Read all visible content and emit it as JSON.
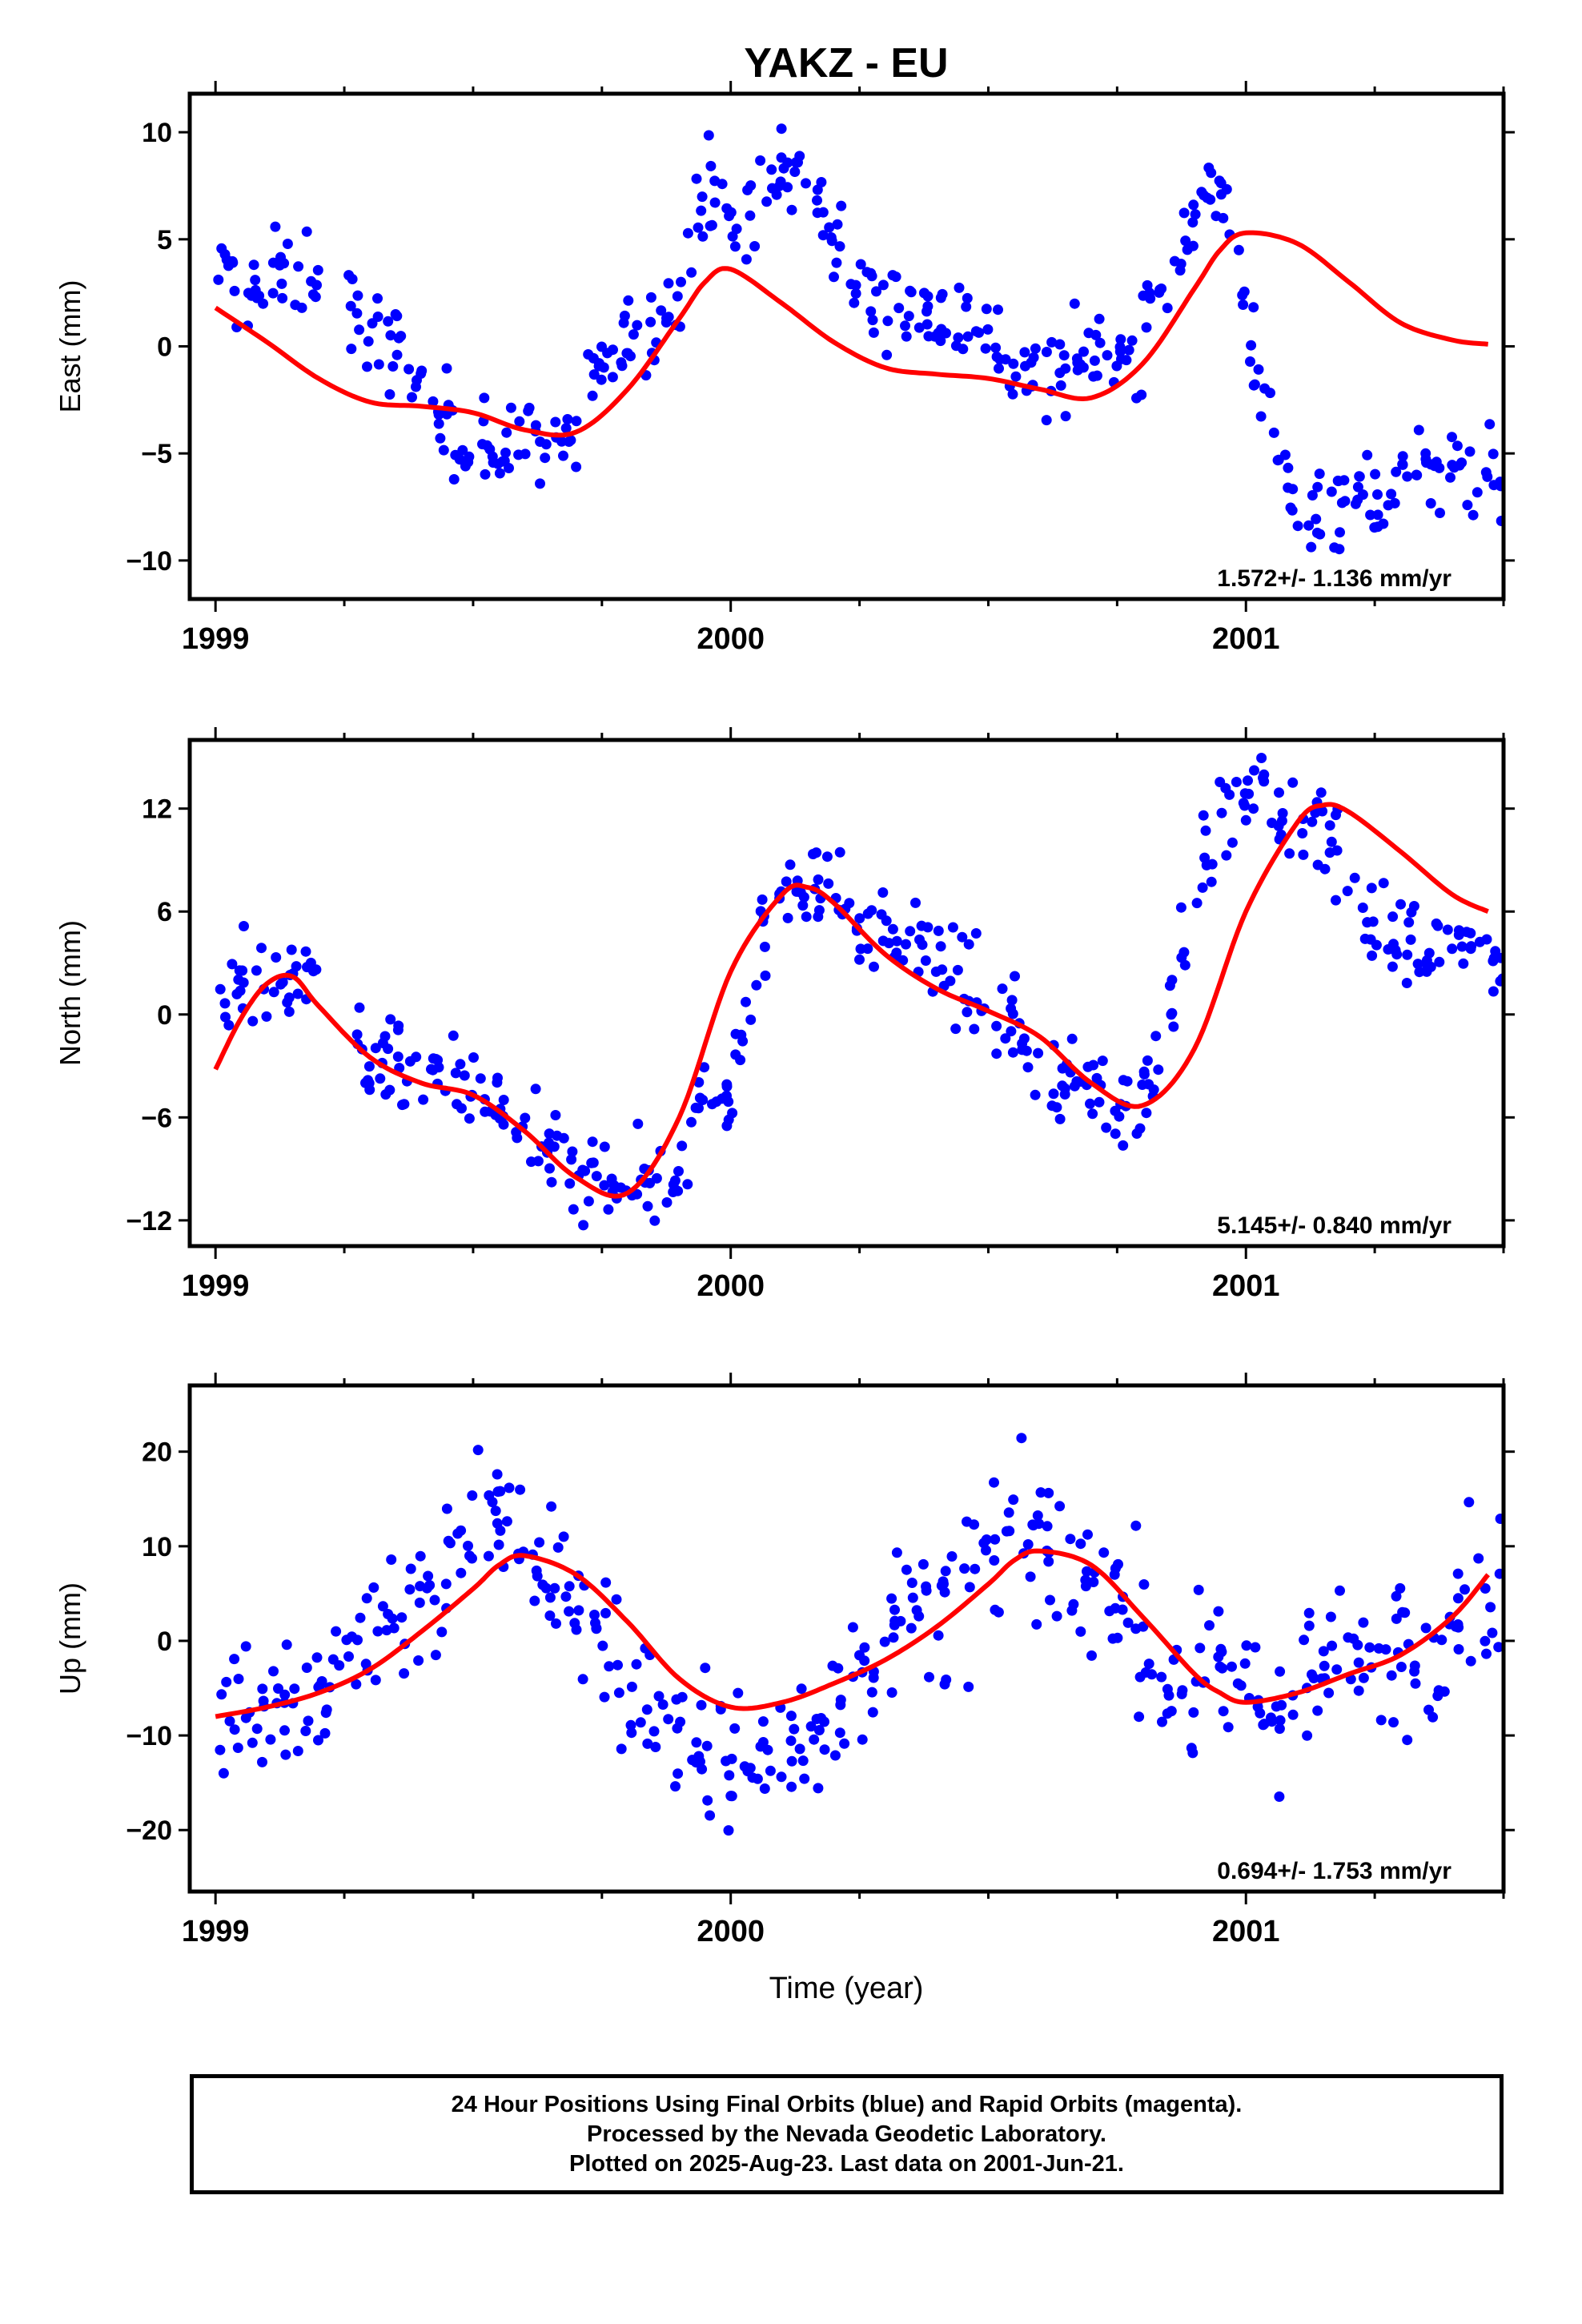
{
  "title": "YAKZ - EU",
  "xlabel": "Time (year)",
  "x_tick_labels": [
    "1999",
    "2000",
    "2001"
  ],
  "colors": {
    "points": "#0000ff",
    "fit": "#ff0000",
    "axes": "#000000"
  },
  "chart_data": [
    {
      "type": "scatter",
      "component": "east",
      "ylabel": "East (mm)",
      "xlim": [
        1998.95,
        2001.5
      ],
      "ylim": [
        -11.8,
        11.8
      ],
      "yticks": [
        -10,
        -5,
        0,
        5,
        10
      ],
      "y_tick_labels": [
        "−10",
        "−5",
        "0",
        "5",
        "10"
      ],
      "rate": "1.572+/- 1.136 mm/yr",
      "series": [
        {
          "role": "points",
          "x": [
            1999.0,
            1999.05,
            1999.1,
            1999.15,
            1999.2,
            1999.25,
            1999.3,
            1999.35,
            1999.4,
            1999.45,
            1999.5,
            1999.55,
            1999.6,
            1999.65,
            1999.7,
            1999.75,
            1999.8,
            1999.85,
            1999.9,
            1999.95,
            2000.0,
            2000.05,
            2000.1,
            2000.15,
            2000.2,
            2000.25,
            2000.3,
            2000.35,
            2000.4,
            2000.45,
            2000.5,
            2000.55,
            2000.6,
            2000.65,
            2000.7,
            2000.75,
            2000.8,
            2000.85,
            2000.9,
            2000.95,
            2001.0,
            2001.05,
            2001.1,
            2001.15,
            2001.2,
            2001.25,
            2001.3,
            2001.35,
            2001.4,
            2001.45
          ],
          "y": [
            3.5,
            2.5,
            3.0,
            3.5,
            null,
            2.0,
            0.5,
            0.0,
            -2.0,
            -3.5,
            -4.5,
            -5.0,
            -4.5,
            -4.0,
            -4.5,
            -1.0,
            0.5,
            0.5,
            3.0,
            8.0,
            5.5,
            7.0,
            8.0,
            8.0,
            5.0,
            2.5,
            2.0,
            2.0,
            1.5,
            1.5,
            0.5,
            -1.0,
            -1.5,
            -1.0,
            -0.5,
            -0.5,
            0.5,
            3.5,
            6.5,
            7.5,
            2.0,
            -4.5,
            -8.0,
            -7.5,
            -7.0,
            -7.0,
            -6.0,
            -6.0,
            -6.0,
            -6.0
          ]
        },
        {
          "role": "fit",
          "x": [
            1999.0,
            1999.1,
            1999.2,
            1999.3,
            1999.4,
            1999.5,
            1999.6,
            1999.7,
            1999.8,
            1999.9,
            1999.95,
            2000.0,
            2000.1,
            2000.2,
            2000.3,
            2000.4,
            2000.5,
            2000.6,
            2000.7,
            2000.8,
            2000.9,
            2000.95,
            2001.0,
            2001.1,
            2001.2,
            2001.3,
            2001.4,
            2001.47
          ],
          "y": [
            1.8,
            0.2,
            -1.5,
            -2.6,
            -2.8,
            -3.1,
            -3.9,
            -4.0,
            -2.0,
            1.3,
            3.0,
            3.6,
            2.0,
            0.2,
            -1.0,
            -1.3,
            -1.5,
            -2.0,
            -2.4,
            -0.8,
            2.7,
            4.5,
            5.3,
            4.8,
            3.0,
            1.1,
            0.3,
            0.1
          ]
        }
      ]
    },
    {
      "type": "scatter",
      "component": "north",
      "ylabel": "North (mm)",
      "xlim": [
        1998.95,
        2001.5
      ],
      "ylim": [
        -13.5,
        16.0
      ],
      "yticks": [
        -12,
        -6,
        0,
        6,
        12
      ],
      "y_tick_labels": [
        "−12",
        "−6",
        "0",
        "6",
        "12"
      ],
      "rate": "5.145+/- 0.840 mm/yr",
      "series": [
        {
          "role": "points",
          "x": [
            1999.0,
            1999.05,
            1999.1,
            1999.15,
            1999.2,
            1999.25,
            1999.3,
            1999.35,
            1999.4,
            1999.45,
            1999.5,
            1999.55,
            1999.6,
            1999.65,
            1999.7,
            1999.75,
            1999.8,
            1999.85,
            1999.9,
            1999.95,
            2000.0,
            2000.05,
            2000.1,
            2000.15,
            2000.2,
            2000.25,
            2000.3,
            2000.35,
            2000.4,
            2000.45,
            2000.5,
            2000.55,
            2000.6,
            2000.65,
            2000.7,
            2000.75,
            2000.8,
            2000.85,
            2000.9,
            2000.95,
            2001.0,
            2001.05,
            2001.1,
            2001.15,
            2001.2,
            2001.25,
            2001.3,
            2001.35,
            2001.4,
            2001.45
          ],
          "y": [
            0.0,
            2.5,
            1.0,
            2.0,
            null,
            -1.5,
            -3.0,
            -3.5,
            -3.0,
            -4.5,
            -4.5,
            -5.5,
            -7.0,
            -8.5,
            -9.5,
            -9.5,
            -9.5,
            -10.0,
            -9.0,
            -4.0,
            -4.5,
            3.0,
            8.0,
            8.0,
            7.0,
            5.0,
            4.5,
            4.0,
            3.0,
            2.0,
            1.0,
            -1.0,
            -3.0,
            -4.5,
            -4.0,
            -5.0,
            -5.5,
            0.0,
            8.0,
            11.5,
            12.5,
            12.0,
            11.0,
            11.5,
            8.0,
            5.0,
            4.0,
            4.5,
            4.0,
            4.0
          ]
        },
        {
          "role": "fit",
          "x": [
            1999.0,
            1999.05,
            1999.1,
            1999.15,
            1999.2,
            1999.3,
            1999.4,
            1999.5,
            1999.6,
            1999.7,
            1999.8,
            1999.9,
            2000.0,
            2000.1,
            2000.15,
            2000.2,
            2000.3,
            2000.4,
            2000.5,
            2000.6,
            2000.7,
            2000.8,
            2000.9,
            2001.0,
            2001.1,
            2001.15,
            2001.2,
            2001.3,
            2001.4,
            2001.47
          ],
          "y": [
            -3.2,
            -0.2,
            1.8,
            2.2,
            0.5,
            -2.5,
            -4.0,
            -4.7,
            -6.8,
            -9.5,
            -10.4,
            -6.0,
            2.5,
            7.0,
            7.4,
            6.5,
            3.5,
            1.5,
            0.2,
            -1.3,
            -4.0,
            -5.3,
            -2.0,
            6.0,
            11.2,
            12.2,
            11.8,
            9.5,
            7.0,
            6.0
          ]
        }
      ]
    },
    {
      "type": "scatter",
      "component": "up",
      "ylabel": "Up (mm)",
      "xlim": [
        1998.95,
        2001.5
      ],
      "ylim": [
        -26.5,
        27.0
      ],
      "yticks": [
        -20,
        -10,
        0,
        10,
        20
      ],
      "y_tick_labels": [
        "−20",
        "−10",
        "0",
        "10",
        "20"
      ],
      "rate": "0.694+/- 1.753 mm/yr",
      "series": [
        {
          "role": "points",
          "x": [
            1999.0,
            1999.05,
            1999.1,
            1999.15,
            1999.2,
            1999.25,
            1999.3,
            1999.35,
            1999.4,
            1999.45,
            1999.5,
            1999.55,
            1999.6,
            1999.65,
            1999.7,
            1999.75,
            1999.8,
            1999.85,
            1999.9,
            1999.95,
            2000.0,
            2000.05,
            2000.1,
            2000.15,
            2000.2,
            2000.25,
            2000.3,
            2000.35,
            2000.4,
            2000.45,
            2000.5,
            2000.55,
            2000.6,
            2000.65,
            2000.7,
            2000.75,
            2000.8,
            2000.85,
            2000.9,
            2000.95,
            2001.0,
            2001.05,
            2001.1,
            2001.15,
            2001.2,
            2001.25,
            2001.3,
            2001.35,
            2001.4,
            2001.45
          ],
          "y": [
            -8.0,
            -6.0,
            -8.0,
            -7.0,
            -8.0,
            -2.0,
            2.0,
            3.0,
            5.0,
            8.0,
            12.0,
            14.0,
            10.0,
            8.0,
            3.0,
            0.0,
            -4.0,
            -8.0,
            -10.0,
            -12.0,
            -12.0,
            -14.0,
            -12.0,
            -10.0,
            -6.0,
            -3.0,
            0.0,
            2.0,
            3.0,
            5.0,
            8.0,
            10.0,
            9.0,
            10.0,
            8.0,
            4.0,
            0.0,
            -4.0,
            -5.0,
            -4.0,
            -6.0,
            -7.0,
            -5.0,
            -3.0,
            -3.0,
            -2.0,
            -1.0,
            0.0,
            3.0,
            6.0
          ]
        },
        {
          "role": "fit",
          "x": [
            1999.0,
            1999.1,
            1999.2,
            1999.3,
            1999.4,
            1999.5,
            1999.55,
            1999.6,
            1999.7,
            1999.8,
            1999.9,
            2000.0,
            2000.1,
            2000.2,
            2000.3,
            2000.4,
            2000.5,
            2000.55,
            2000.6,
            2000.7,
            2000.8,
            2000.9,
            2000.95,
            2001.0,
            2001.1,
            2001.2,
            2001.3,
            2001.4,
            2001.47
          ],
          "y": [
            -8.0,
            -7.0,
            -5.5,
            -3.0,
            1.0,
            5.5,
            8.0,
            9.0,
            7.0,
            2.0,
            -4.0,
            -7.0,
            -6.5,
            -4.5,
            -2.0,
            1.5,
            6.0,
            8.5,
            9.5,
            8.0,
            2.5,
            -3.5,
            -5.5,
            -6.5,
            -5.5,
            -3.5,
            -1.5,
            2.5,
            7.0
          ]
        }
      ]
    }
  ],
  "caption": [
    "24 Hour Positions Using Final Orbits (blue) and Rapid Orbits (magenta).",
    "Processed by the Nevada Geodetic Laboratory.",
    "Plotted on 2025-Aug-23. Last data on 2001-Jun-21."
  ]
}
